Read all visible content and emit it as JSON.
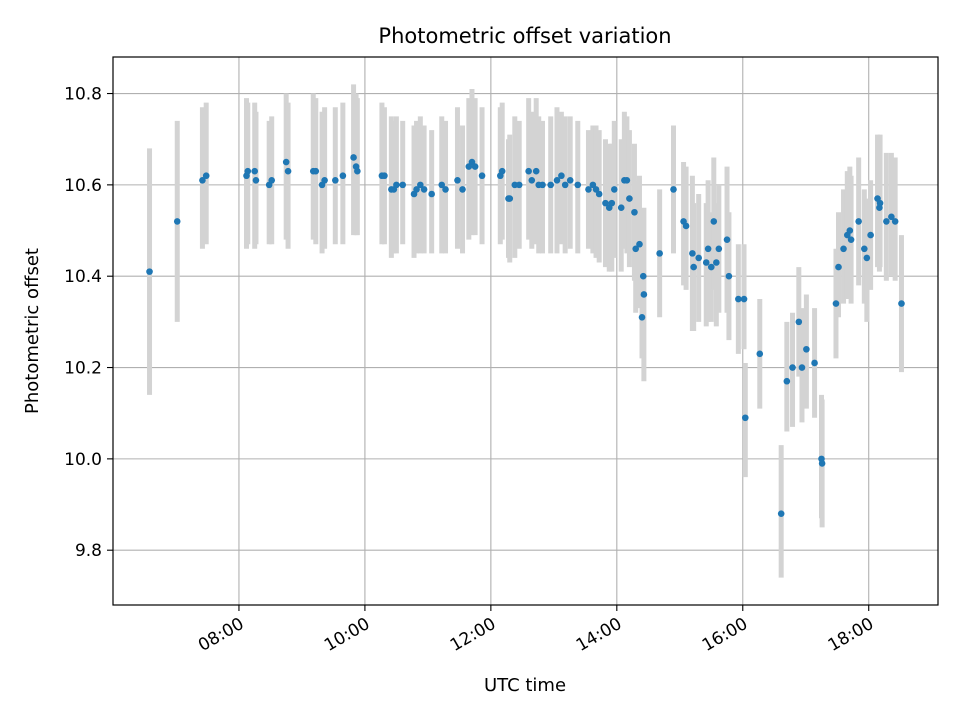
{
  "chart_data": {
    "type": "scatter",
    "title": "Photometric offset variation",
    "xlabel": "UTC time",
    "ylabel": "Photometric offset",
    "x_unit": "hours UTC",
    "xlim": [
      6.0,
      19.1
    ],
    "ylim": [
      9.68,
      10.88
    ],
    "x_ticks": [
      {
        "value": 8,
        "label": "08:00"
      },
      {
        "value": 10,
        "label": "10:00"
      },
      {
        "value": 12,
        "label": "12:00"
      },
      {
        "value": 14,
        "label": "14:00"
      },
      {
        "value": 16,
        "label": "16:00"
      },
      {
        "value": 18,
        "label": "18:00"
      }
    ],
    "y_ticks": [
      {
        "value": 9.8,
        "label": "9.8"
      },
      {
        "value": 10.0,
        "label": "10.0"
      },
      {
        "value": 10.2,
        "label": "10.2"
      },
      {
        "value": 10.4,
        "label": "10.4"
      },
      {
        "value": 10.6,
        "label": "10.6"
      },
      {
        "value": 10.8,
        "label": "10.8"
      }
    ],
    "grid": true,
    "marker_color": "#1f77b4",
    "errorbar_color": "#d3d3d3",
    "points": [
      [
        6.58,
        10.41,
        10.14,
        10.68
      ],
      [
        7.02,
        10.52,
        10.3,
        10.74
      ],
      [
        7.42,
        10.61,
        10.46,
        10.77
      ],
      [
        7.48,
        10.62,
        10.47,
        10.78
      ],
      [
        8.12,
        10.62,
        10.46,
        10.79
      ],
      [
        8.14,
        10.63,
        10.47,
        10.78
      ],
      [
        8.25,
        10.63,
        10.46,
        10.78
      ],
      [
        8.27,
        10.61,
        10.47,
        10.76
      ],
      [
        8.48,
        10.6,
        10.47,
        10.74
      ],
      [
        8.52,
        10.61,
        10.47,
        10.75
      ],
      [
        8.75,
        10.65,
        10.48,
        10.8
      ],
      [
        8.78,
        10.63,
        10.46,
        10.78
      ],
      [
        9.18,
        10.63,
        10.48,
        10.8
      ],
      [
        9.22,
        10.63,
        10.47,
        10.79
      ],
      [
        9.32,
        10.6,
        10.45,
        10.76
      ],
      [
        9.36,
        10.61,
        10.46,
        10.77
      ],
      [
        9.53,
        10.61,
        10.47,
        10.77
      ],
      [
        9.65,
        10.62,
        10.47,
        10.78
      ],
      [
        9.82,
        10.66,
        10.49,
        10.82
      ],
      [
        9.86,
        10.64,
        10.49,
        10.8
      ],
      [
        9.88,
        10.63,
        10.49,
        10.79
      ],
      [
        10.27,
        10.62,
        10.47,
        10.78
      ],
      [
        10.31,
        10.62,
        10.47,
        10.77
      ],
      [
        10.42,
        10.59,
        10.44,
        10.75
      ],
      [
        10.46,
        10.59,
        10.45,
        10.74
      ],
      [
        10.5,
        10.6,
        10.45,
        10.75
      ],
      [
        10.6,
        10.6,
        10.47,
        10.74
      ],
      [
        10.78,
        10.58,
        10.44,
        10.73
      ],
      [
        10.82,
        10.59,
        10.45,
        10.74
      ],
      [
        10.88,
        10.6,
        10.45,
        10.75
      ],
      [
        10.94,
        10.59,
        10.45,
        10.73
      ],
      [
        11.06,
        10.58,
        10.45,
        10.72
      ],
      [
        11.22,
        10.6,
        10.45,
        10.75
      ],
      [
        11.28,
        10.59,
        10.45,
        10.74
      ],
      [
        11.47,
        10.61,
        10.46,
        10.77
      ],
      [
        11.55,
        10.59,
        10.45,
        10.73
      ],
      [
        11.65,
        10.64,
        10.48,
        10.79
      ],
      [
        11.7,
        10.65,
        10.49,
        10.81
      ],
      [
        11.75,
        10.64,
        10.49,
        10.79
      ],
      [
        11.86,
        10.62,
        10.47,
        10.77
      ],
      [
        12.15,
        10.62,
        10.47,
        10.77
      ],
      [
        12.18,
        10.63,
        10.48,
        10.78
      ],
      [
        12.28,
        10.57,
        10.44,
        10.7
      ],
      [
        12.3,
        10.57,
        10.43,
        10.71
      ],
      [
        12.38,
        10.6,
        10.44,
        10.75
      ],
      [
        12.45,
        10.6,
        10.46,
        10.74
      ],
      [
        12.6,
        10.63,
        10.48,
        10.79
      ],
      [
        12.65,
        10.61,
        10.46,
        10.76
      ],
      [
        12.72,
        10.63,
        10.47,
        10.79
      ],
      [
        12.76,
        10.6,
        10.45,
        10.75
      ],
      [
        12.82,
        10.6,
        10.45,
        10.74
      ],
      [
        12.95,
        10.6,
        10.45,
        10.75
      ],
      [
        13.05,
        10.61,
        10.45,
        10.77
      ],
      [
        13.12,
        10.62,
        10.47,
        10.76
      ],
      [
        13.18,
        10.6,
        10.45,
        10.75
      ],
      [
        13.26,
        10.61,
        10.46,
        10.75
      ],
      [
        13.38,
        10.6,
        10.45,
        10.74
      ],
      [
        13.55,
        10.59,
        10.46,
        10.72
      ],
      [
        13.62,
        10.6,
        10.45,
        10.73
      ],
      [
        13.67,
        10.59,
        10.44,
        10.73
      ],
      [
        13.72,
        10.58,
        10.43,
        10.72
      ],
      [
        13.82,
        10.56,
        10.42,
        10.7
      ],
      [
        13.88,
        10.55,
        10.41,
        10.69
      ],
      [
        13.92,
        10.56,
        10.41,
        10.69
      ],
      [
        13.96,
        10.59,
        10.44,
        10.74
      ],
      [
        14.07,
        10.55,
        10.41,
        10.7
      ],
      [
        14.12,
        10.61,
        10.46,
        10.76
      ],
      [
        14.16,
        10.61,
        10.45,
        10.75
      ],
      [
        14.2,
        10.57,
        10.42,
        10.72
      ],
      [
        14.28,
        10.54,
        10.39,
        10.69
      ],
      [
        14.3,
        10.46,
        10.32,
        10.61
      ],
      [
        14.36,
        10.47,
        10.33,
        10.62
      ],
      [
        14.4,
        10.31,
        10.22,
        10.4
      ],
      [
        14.42,
        10.4,
        10.27,
        10.53
      ],
      [
        14.43,
        10.36,
        10.17,
        10.55
      ],
      [
        14.68,
        10.45,
        10.31,
        10.59
      ],
      [
        14.9,
        10.59,
        10.45,
        10.73
      ],
      [
        15.06,
        10.52,
        10.38,
        10.65
      ],
      [
        15.1,
        10.51,
        10.37,
        10.64
      ],
      [
        15.2,
        10.45,
        10.28,
        10.62
      ],
      [
        15.22,
        10.42,
        10.28,
        10.56
      ],
      [
        15.3,
        10.44,
        10.3,
        10.58
      ],
      [
        15.42,
        10.43,
        10.29,
        10.56
      ],
      [
        15.45,
        10.46,
        10.3,
        10.61
      ],
      [
        15.5,
        10.42,
        10.3,
        10.54
      ],
      [
        15.54,
        10.52,
        10.37,
        10.66
      ],
      [
        15.58,
        10.43,
        10.29,
        10.56
      ],
      [
        15.62,
        10.46,
        10.32,
        10.6
      ],
      [
        15.75,
        10.48,
        10.32,
        10.64
      ],
      [
        15.78,
        10.4,
        10.26,
        10.54
      ],
      [
        15.93,
        10.35,
        10.23,
        10.47
      ],
      [
        16.02,
        10.35,
        10.24,
        10.47
      ],
      [
        16.04,
        10.09,
        9.96,
        10.21
      ],
      [
        16.27,
        10.23,
        10.11,
        10.35
      ],
      [
        16.61,
        9.88,
        9.74,
        10.03
      ],
      [
        16.7,
        10.17,
        10.06,
        10.3
      ],
      [
        16.79,
        10.2,
        10.07,
        10.32
      ],
      [
        16.89,
        10.3,
        10.18,
        10.42
      ],
      [
        16.94,
        10.2,
        10.08,
        10.33
      ],
      [
        17.01,
        10.24,
        10.11,
        10.36
      ],
      [
        17.14,
        10.21,
        10.09,
        10.33
      ],
      [
        17.25,
        10.0,
        9.87,
        10.14
      ],
      [
        17.26,
        9.99,
        9.85,
        10.13
      ],
      [
        17.48,
        10.34,
        10.22,
        10.46
      ],
      [
        17.52,
        10.42,
        10.31,
        10.54
      ],
      [
        17.6,
        10.46,
        10.34,
        10.59
      ],
      [
        17.66,
        10.49,
        10.35,
        10.63
      ],
      [
        17.7,
        10.5,
        10.36,
        10.64
      ],
      [
        17.72,
        10.48,
        10.34,
        10.62
      ],
      [
        17.84,
        10.52,
        10.38,
        10.66
      ],
      [
        17.93,
        10.46,
        10.34,
        10.59
      ],
      [
        17.97,
        10.44,
        10.3,
        10.57
      ],
      [
        18.03,
        10.49,
        10.37,
        10.61
      ],
      [
        18.14,
        10.57,
        10.42,
        10.71
      ],
      [
        18.17,
        10.55,
        10.41,
        10.7
      ],
      [
        18.18,
        10.56,
        10.42,
        10.71
      ],
      [
        18.28,
        10.52,
        10.39,
        10.67
      ],
      [
        18.36,
        10.53,
        10.4,
        10.67
      ],
      [
        18.42,
        10.52,
        10.39,
        10.66
      ],
      [
        18.52,
        10.34,
        10.19,
        10.49
      ]
    ]
  }
}
